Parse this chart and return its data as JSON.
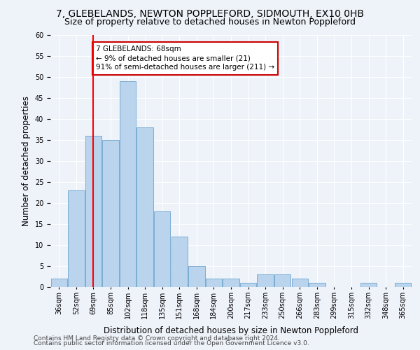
{
  "title1": "7, GLEBELANDS, NEWTON POPPLEFORD, SIDMOUTH, EX10 0HB",
  "title2": "Size of property relative to detached houses in Newton Poppleford",
  "xlabel": "Distribution of detached houses by size in Newton Poppleford",
  "ylabel": "Number of detached properties",
  "categories": [
    "36sqm",
    "52sqm",
    "69sqm",
    "85sqm",
    "102sqm",
    "118sqm",
    "135sqm",
    "151sqm",
    "168sqm",
    "184sqm",
    "200sqm",
    "217sqm",
    "233sqm",
    "250sqm",
    "266sqm",
    "283sqm",
    "299sqm",
    "315sqm",
    "332sqm",
    "348sqm",
    "365sqm"
  ],
  "values": [
    2,
    23,
    36,
    35,
    49,
    38,
    18,
    12,
    5,
    2,
    2,
    1,
    3,
    3,
    2,
    1,
    0,
    0,
    1,
    0,
    1
  ],
  "bar_color": "#bad4ed",
  "bar_edge_color": "#7aadd4",
  "red_line_index": 2,
  "annotation_text": "7 GLEBELANDS: 68sqm\n← 9% of detached houses are smaller (21)\n91% of semi-detached houses are larger (211) →",
  "annotation_box_color": "#ffffff",
  "annotation_box_edge_color": "#cc0000",
  "ylim": [
    0,
    60
  ],
  "yticks": [
    0,
    5,
    10,
    15,
    20,
    25,
    30,
    35,
    40,
    45,
    50,
    55,
    60
  ],
  "footer1": "Contains HM Land Registry data © Crown copyright and database right 2024.",
  "footer2": "Contains public sector information licensed under the Open Government Licence v3.0.",
  "background_color": "#eef2f9",
  "grid_color": "#ffffff",
  "title1_fontsize": 10,
  "title2_fontsize": 9,
  "xlabel_fontsize": 8.5,
  "ylabel_fontsize": 8.5,
  "tick_fontsize": 7,
  "annotation_fontsize": 7.5,
  "footer_fontsize": 6.5
}
